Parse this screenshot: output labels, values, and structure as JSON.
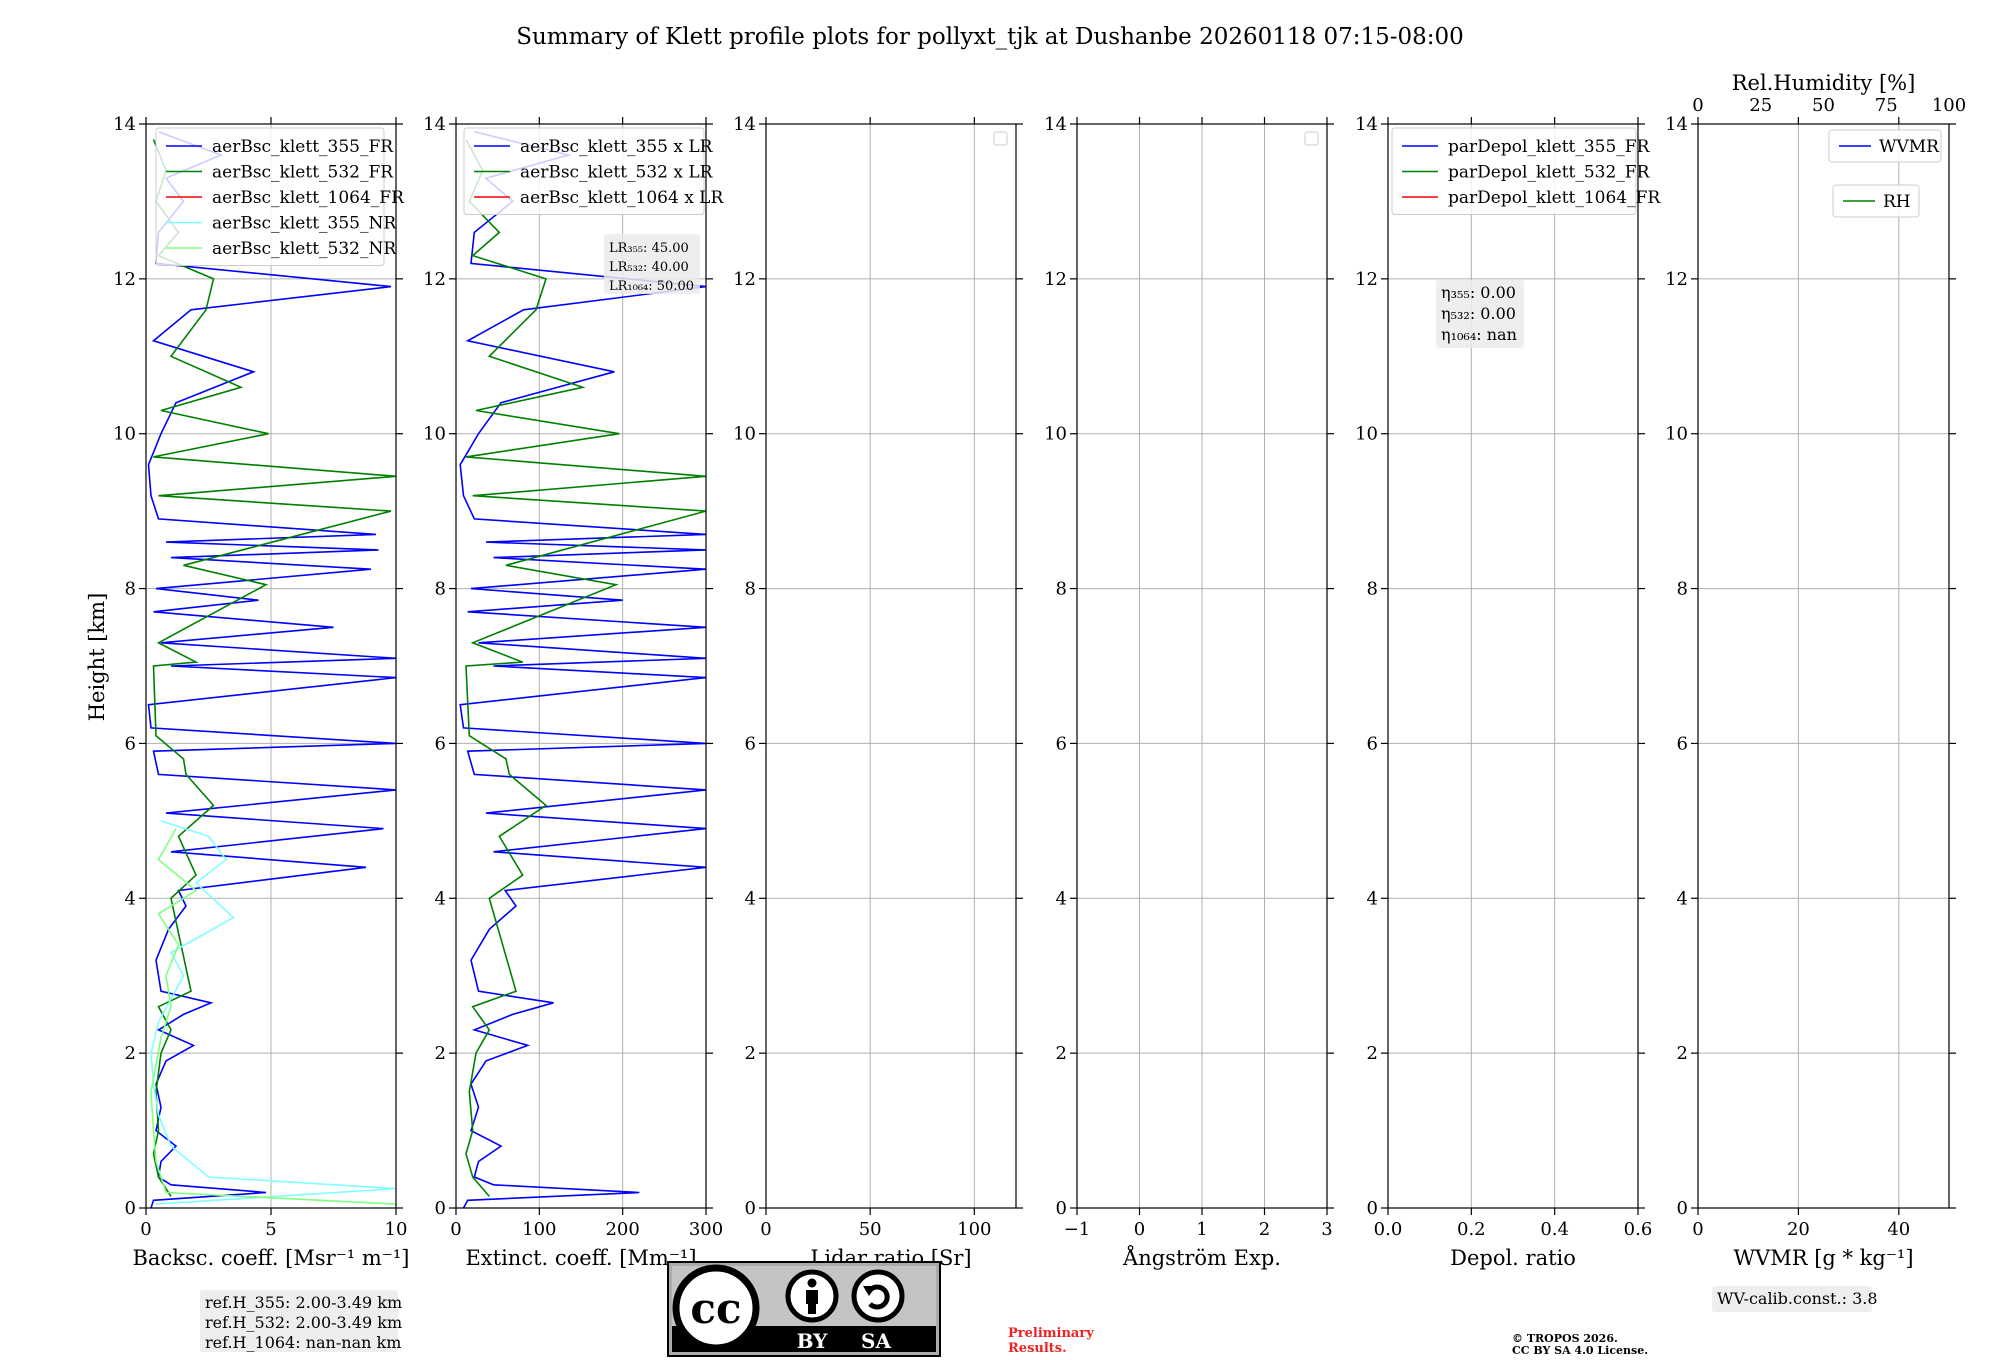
{
  "title": "Summary of Klett profile plots for pollyxt_tjk at Dushanbe 20260118 07:15-08:00",
  "ylabel": "Height [km]",
  "chart_data": [
    {
      "type": "line",
      "id": "bsc",
      "xlabel": "Backsc. coeff. [Msr⁻¹ m⁻¹]",
      "xlim": [
        0,
        10
      ],
      "xticks": [
        0,
        5,
        10
      ],
      "ylim": [
        0,
        14
      ],
      "yticks": [
        0,
        2,
        4,
        6,
        8,
        10,
        12,
        14
      ],
      "legend": [
        "aerBsc_klett_355_FR",
        "aerBsc_klett_532_FR",
        "aerBsc_klett_1064_FR",
        "aerBsc_klett_355_NR",
        "aerBsc_klett_532_NR"
      ],
      "series": [
        {
          "name": "aerBsc_klett_355_FR",
          "color": "#0000ff",
          "points": [
            [
              0.2,
              0
            ],
            [
              0.3,
              0.1
            ],
            [
              4.8,
              0.2
            ],
            [
              1.0,
              0.3
            ],
            [
              0.5,
              0.4
            ],
            [
              0.6,
              0.6
            ],
            [
              1.2,
              0.8
            ],
            [
              0.4,
              1.0
            ],
            [
              0.6,
              1.3
            ],
            [
              0.4,
              1.6
            ],
            [
              0.8,
              1.9
            ],
            [
              1.9,
              2.1
            ],
            [
              0.5,
              2.3
            ],
            [
              1.5,
              2.5
            ],
            [
              2.6,
              2.65
            ],
            [
              0.6,
              2.8
            ],
            [
              0.4,
              3.2
            ],
            [
              0.9,
              3.6
            ],
            [
              1.6,
              3.9
            ],
            [
              1.3,
              4.1
            ],
            [
              8.8,
              4.4
            ],
            [
              1.0,
              4.6
            ],
            [
              9.5,
              4.9
            ],
            [
              0.8,
              5.1
            ],
            [
              10,
              5.4
            ],
            [
              0.5,
              5.6
            ],
            [
              0.3,
              5.9
            ],
            [
              10,
              6.0
            ],
            [
              0.2,
              6.2
            ],
            [
              0.1,
              6.5
            ],
            [
              10,
              6.85
            ],
            [
              1.0,
              7.0
            ],
            [
              10,
              7.1
            ],
            [
              0.6,
              7.3
            ],
            [
              7.5,
              7.5
            ],
            [
              0.3,
              7.7
            ],
            [
              4.5,
              7.85
            ],
            [
              0.4,
              8.0
            ],
            [
              9.0,
              8.25
            ],
            [
              1.0,
              8.4
            ],
            [
              9.3,
              8.5
            ],
            [
              0.8,
              8.6
            ],
            [
              9.2,
              8.7
            ],
            [
              0.5,
              8.9
            ],
            [
              0.2,
              9.2
            ],
            [
              0.1,
              9.6
            ],
            [
              0.6,
              10.0
            ],
            [
              1.2,
              10.4
            ],
            [
              4.3,
              10.8
            ],
            [
              0.3,
              11.2
            ],
            [
              1.8,
              11.6
            ],
            [
              9.8,
              11.9
            ],
            [
              0.4,
              12.2
            ],
            [
              0.5,
              12.6
            ],
            [
              1.5,
              13.0
            ],
            [
              0.8,
              13.3
            ],
            [
              3.0,
              13.6
            ],
            [
              0.5,
              13.9
            ]
          ]
        },
        {
          "name": "aerBsc_klett_532_FR",
          "color": "#008000",
          "points": [
            [
              1.0,
              0.15
            ],
            [
              0.5,
              0.4
            ],
            [
              0.3,
              0.7
            ],
            [
              0.5,
              1.0
            ],
            [
              0.4,
              1.5
            ],
            [
              0.6,
              2.0
            ],
            [
              1.0,
              2.3
            ],
            [
              0.5,
              2.6
            ],
            [
              1.8,
              2.8
            ],
            [
              1.0,
              4.0
            ],
            [
              2.0,
              4.3
            ],
            [
              1.3,
              4.8
            ],
            [
              2.7,
              5.2
            ],
            [
              1.6,
              5.6
            ],
            [
              1.5,
              5.8
            ],
            [
              0.4,
              6.1
            ],
            [
              0.3,
              7.0
            ],
            [
              2.0,
              7.05
            ],
            [
              0.5,
              7.3
            ],
            [
              4.8,
              8.05
            ],
            [
              1.5,
              8.3
            ],
            [
              9.8,
              9.0
            ],
            [
              0.5,
              9.2
            ],
            [
              10,
              9.45
            ],
            [
              0.3,
              9.7
            ],
            [
              4.9,
              10.0
            ],
            [
              0.6,
              10.3
            ],
            [
              3.8,
              10.6
            ],
            [
              1.0,
              11.0
            ],
            [
              2.4,
              11.6
            ],
            [
              2.7,
              12.0
            ],
            [
              0.5,
              12.3
            ],
            [
              1.3,
              12.6
            ],
            [
              0.4,
              13.0
            ],
            [
              0.8,
              13.4
            ],
            [
              0.3,
              13.8
            ]
          ]
        },
        {
          "name": "aerBsc_klett_1064_FR",
          "color": "#ff0000",
          "points": []
        },
        {
          "name": "aerBsc_klett_355_NR",
          "color": "#80ffff",
          "points": [
            [
              0.4,
              0.05
            ],
            [
              10,
              0.25
            ],
            [
              2.5,
              0.4
            ],
            [
              1.0,
              0.8
            ],
            [
              0.5,
              1.2
            ],
            [
              0.3,
              1.6
            ],
            [
              0.2,
              2.0
            ],
            [
              0.5,
              2.4
            ],
            [
              1.5,
              3.0
            ],
            [
              1.0,
              3.3
            ],
            [
              3.5,
              3.75
            ],
            [
              2.0,
              4.2
            ],
            [
              3.2,
              4.5
            ],
            [
              2.5,
              4.8
            ],
            [
              0.6,
              5.0
            ]
          ]
        },
        {
          "name": "aerBsc_klett_532_NR",
          "color": "#80ff80",
          "points": [
            [
              10,
              0.05
            ],
            [
              0.8,
              0.2
            ],
            [
              0.4,
              0.6
            ],
            [
              0.3,
              1.0
            ],
            [
              0.2,
              1.5
            ],
            [
              0.6,
              2.2
            ],
            [
              1.0,
              2.6
            ],
            [
              0.8,
              3.0
            ],
            [
              1.3,
              3.4
            ],
            [
              0.5,
              3.8
            ],
            [
              2.0,
              4.1
            ],
            [
              0.5,
              4.5
            ],
            [
              1.2,
              4.9
            ]
          ]
        }
      ],
      "info": [
        "ref.H_355: 2.00-3.49 km",
        "ref.H_532: 2.00-3.49 km",
        "ref.H_1064: nan-nan km"
      ]
    },
    {
      "type": "line",
      "id": "ext",
      "xlabel": "Extinct. coeff. [Mm⁻¹]",
      "xlim": [
        0,
        300
      ],
      "xticks": [
        0,
        100,
        200,
        300
      ],
      "ylim": [
        0,
        14
      ],
      "yticks": [
        0,
        2,
        4,
        6,
        8,
        10,
        12,
        14
      ],
      "legend": [
        "aerBsc_klett_355 x LR",
        "aerBsc_klett_532 x LR",
        "aerBsc_klett_1064 x LR"
      ],
      "series": [
        {
          "name": "aerBsc_klett_355 x LR",
          "color": "#0000ff",
          "points": [
            [
              9,
              0
            ],
            [
              14,
              0.1
            ],
            [
              220,
              0.2
            ],
            [
              45,
              0.3
            ],
            [
              22,
              0.4
            ],
            [
              27,
              0.6
            ],
            [
              54,
              0.8
            ],
            [
              18,
              1.0
            ],
            [
              27,
              1.3
            ],
            [
              18,
              1.6
            ],
            [
              36,
              1.9
            ],
            [
              86,
              2.1
            ],
            [
              22,
              2.3
            ],
            [
              68,
              2.5
            ],
            [
              117,
              2.65
            ],
            [
              27,
              2.8
            ],
            [
              18,
              3.2
            ],
            [
              40,
              3.6
            ],
            [
              72,
              3.9
            ],
            [
              59,
              4.1
            ],
            [
              300,
              4.4
            ],
            [
              45,
              4.6
            ],
            [
              300,
              4.9
            ],
            [
              36,
              5.1
            ],
            [
              300,
              5.4
            ],
            [
              22,
              5.6
            ],
            [
              14,
              5.9
            ],
            [
              300,
              6.0
            ],
            [
              9,
              6.2
            ],
            [
              5,
              6.5
            ],
            [
              300,
              6.85
            ],
            [
              45,
              7.0
            ],
            [
              300,
              7.1
            ],
            [
              27,
              7.3
            ],
            [
              300,
              7.5
            ],
            [
              14,
              7.7
            ],
            [
              200,
              7.85
            ],
            [
              18,
              8.0
            ],
            [
              300,
              8.25
            ],
            [
              45,
              8.4
            ],
            [
              300,
              8.5
            ],
            [
              36,
              8.6
            ],
            [
              300,
              8.7
            ],
            [
              22,
              8.9
            ],
            [
              9,
              9.2
            ],
            [
              5,
              9.6
            ],
            [
              27,
              10.0
            ],
            [
              54,
              10.4
            ],
            [
              190,
              10.8
            ],
            [
              14,
              11.2
            ],
            [
              81,
              11.6
            ],
            [
              300,
              11.9
            ],
            [
              18,
              12.2
            ],
            [
              22,
              12.6
            ],
            [
              68,
              13.0
            ],
            [
              36,
              13.3
            ],
            [
              135,
              13.6
            ],
            [
              22,
              13.9
            ]
          ]
        },
        {
          "name": "aerBsc_klett_532 x LR",
          "color": "#008000",
          "points": [
            [
              40,
              0.15
            ],
            [
              20,
              0.4
            ],
            [
              12,
              0.7
            ],
            [
              20,
              1.0
            ],
            [
              16,
              1.5
            ],
            [
              24,
              2.0
            ],
            [
              40,
              2.3
            ],
            [
              20,
              2.6
            ],
            [
              72,
              2.8
            ],
            [
              40,
              4.0
            ],
            [
              80,
              4.3
            ],
            [
              52,
              4.8
            ],
            [
              108,
              5.2
            ],
            [
              64,
              5.6
            ],
            [
              60,
              5.8
            ],
            [
              16,
              6.1
            ],
            [
              12,
              7.0
            ],
            [
              80,
              7.05
            ],
            [
              20,
              7.3
            ],
            [
              192,
              8.05
            ],
            [
              60,
              8.3
            ],
            [
              300,
              9.0
            ],
            [
              20,
              9.2
            ],
            [
              300,
              9.45
            ],
            [
              12,
              9.7
            ],
            [
              196,
              10.0
            ],
            [
              24,
              10.3
            ],
            [
              152,
              10.6
            ],
            [
              40,
              11.0
            ],
            [
              96,
              11.6
            ],
            [
              108,
              12.0
            ],
            [
              20,
              12.3
            ],
            [
              52,
              12.6
            ],
            [
              16,
              13.0
            ],
            [
              32,
              13.4
            ],
            [
              12,
              13.8
            ]
          ]
        },
        {
          "name": "aerBsc_klett_1064 x LR",
          "color": "#ff0000",
          "points": []
        }
      ],
      "info": [
        "LR₃₅₅: 45.00",
        "LR₅₃₂: 40.00",
        "LR₁₀₆₄: 50.00"
      ]
    },
    {
      "type": "line",
      "id": "lr",
      "xlabel": "Lidar ratio [Sr]",
      "xlim": [
        0,
        120
      ],
      "xticks": [
        0,
        50,
        100
      ],
      "ylim": [
        0,
        14
      ],
      "yticks": [
        0,
        2,
        4,
        6,
        8,
        10,
        12,
        14
      ],
      "legend": [],
      "series": []
    },
    {
      "type": "line",
      "id": "ang",
      "xlabel": "Ångström Exp.",
      "xlim": [
        -1,
        3
      ],
      "xticks": [
        -1,
        0,
        1,
        2,
        3
      ],
      "ylim": [
        0,
        14
      ],
      "yticks": [
        0,
        2,
        4,
        6,
        8,
        10,
        12,
        14
      ],
      "legend": [],
      "series": []
    },
    {
      "type": "line",
      "id": "depol",
      "xlabel": "Depol. ratio",
      "xlim": [
        0,
        0.6
      ],
      "xticks": [
        0.0,
        0.2,
        0.4,
        0.6
      ],
      "ylim": [
        0,
        14
      ],
      "yticks": [
        0,
        2,
        4,
        6,
        8,
        10,
        12,
        14
      ],
      "legend": [
        "parDepol_klett_355_FR",
        "parDepol_klett_532_FR",
        "parDepol_klett_1064_FR"
      ],
      "series": [
        {
          "name": "parDepol_klett_355_FR",
          "color": "#0000ff",
          "points": []
        },
        {
          "name": "parDepol_klett_532_FR",
          "color": "#008000",
          "points": []
        },
        {
          "name": "parDepol_klett_1064_FR",
          "color": "#ff0000",
          "points": []
        }
      ],
      "info": [
        "η₃₅₅: 0.00",
        "η₅₃₂: 0.00",
        "η₁₀₆₄: nan"
      ]
    },
    {
      "type": "line",
      "id": "wv",
      "xlabel": "WVMR [g * kg⁻¹]",
      "xlim": [
        0,
        50
      ],
      "xticks": [
        0,
        20,
        40
      ],
      "top_xlabel": "Rel.Humidity [%]",
      "top_xlim": [
        0,
        100
      ],
      "top_xticks": [
        0,
        25,
        50,
        75,
        100
      ],
      "ylim": [
        0,
        14
      ],
      "yticks": [
        0,
        2,
        4,
        6,
        8,
        10,
        12,
        14
      ],
      "legend": [
        "WVMR",
        "RH"
      ],
      "series": [
        {
          "name": "WVMR",
          "color": "#0000ff",
          "points": []
        },
        {
          "name": "RH",
          "color": "#008000",
          "points": []
        }
      ],
      "info": [
        "WV-calib.const.: 3.8"
      ]
    }
  ],
  "logo": {
    "letters": "cc",
    "by": "BY",
    "sa": "SA"
  },
  "preliminary": [
    "Preliminary",
    "Results."
  ],
  "copyright": [
    "© TROPOS 2026.",
    "CC BY SA 4.0 License."
  ]
}
